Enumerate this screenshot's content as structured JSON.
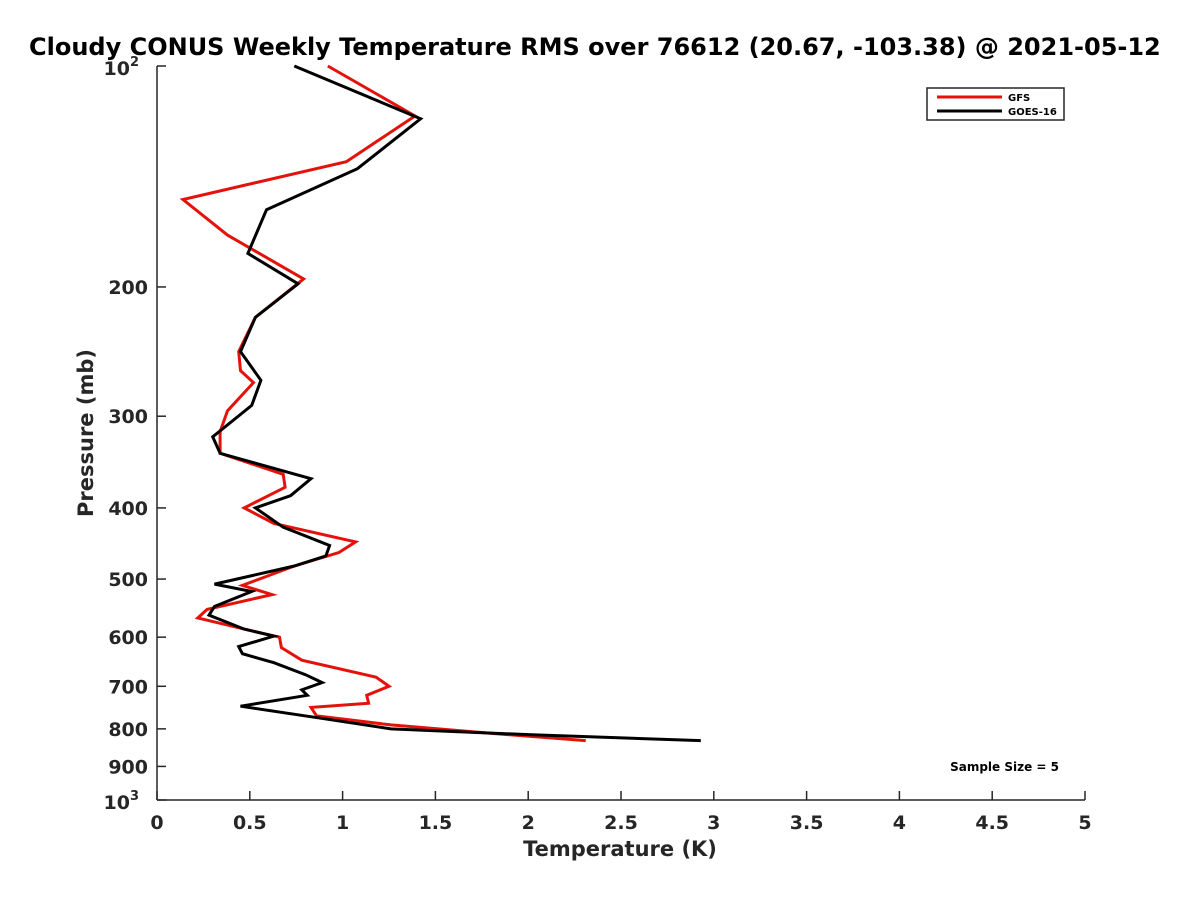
{
  "chart_data": {
    "type": "line",
    "title": "Cloudy CONUS Weekly Temperature RMS over 76612 (20.67, -103.38) @ 2021-05-12",
    "xlabel": "Temperature (K)",
    "ylabel": "Pressure (mb)",
    "xlim": [
      0,
      5
    ],
    "ylim": [
      100,
      1000
    ],
    "y_scale": "log",
    "y_reversed": true,
    "x_ticks": [
      "0",
      "0.5",
      "1",
      "1.5",
      "2",
      "2.5",
      "3",
      "3.5",
      "4",
      "4.5",
      "5"
    ],
    "y_ticks": [
      {
        "value": 100,
        "base": "10",
        "exp": "2"
      },
      {
        "value": 200,
        "label": "200"
      },
      {
        "value": 300,
        "label": "300"
      },
      {
        "value": 400,
        "label": "400"
      },
      {
        "value": 500,
        "label": "500"
      },
      {
        "value": 600,
        "label": "600"
      },
      {
        "value": 700,
        "label": "700"
      },
      {
        "value": 800,
        "label": "800"
      },
      {
        "value": 900,
        "label": "900"
      },
      {
        "value": 1000,
        "base": "10",
        "exp": "3"
      }
    ],
    "grid": false,
    "legend_position": "top-right",
    "annotation": "Sample Size = 5",
    "series": [
      {
        "name": "GFS",
        "color": "#e3120b",
        "points": [
          [
            0.92,
            100
          ],
          [
            1.39,
            117
          ],
          [
            1.02,
            135
          ],
          [
            0.14,
            152
          ],
          [
            0.38,
            170
          ],
          [
            0.79,
            195
          ],
          [
            0.53,
            220
          ],
          [
            0.44,
            245
          ],
          [
            0.45,
            260
          ],
          [
            0.52,
            270
          ],
          [
            0.38,
            295
          ],
          [
            0.34,
            315
          ],
          [
            0.34,
            337
          ],
          [
            0.68,
            360
          ],
          [
            0.69,
            375
          ],
          [
            0.47,
            400
          ],
          [
            0.63,
            420
          ],
          [
            1.07,
            445
          ],
          [
            0.98,
            460
          ],
          [
            0.74,
            480
          ],
          [
            0.46,
            510
          ],
          [
            0.62,
            525
          ],
          [
            0.27,
            550
          ],
          [
            0.22,
            565
          ],
          [
            0.47,
            585
          ],
          [
            0.66,
            600
          ],
          [
            0.67,
            620
          ],
          [
            0.78,
            645
          ],
          [
            1.18,
            680
          ],
          [
            1.25,
            700
          ],
          [
            1.13,
            720
          ],
          [
            1.14,
            738
          ],
          [
            0.83,
            748
          ],
          [
            0.86,
            768
          ],
          [
            1.26,
            790
          ],
          [
            1.82,
            812
          ],
          [
            2.31,
            830
          ]
        ]
      },
      {
        "name": "GOES-16",
        "color": "#000000",
        "points": [
          [
            0.74,
            100
          ],
          [
            1.42,
            118
          ],
          [
            1.08,
            138
          ],
          [
            0.59,
            157
          ],
          [
            0.49,
            180
          ],
          [
            0.76,
            198
          ],
          [
            0.53,
            220
          ],
          [
            0.45,
            245
          ],
          [
            0.56,
            268
          ],
          [
            0.51,
            290
          ],
          [
            0.3,
            320
          ],
          [
            0.34,
            337
          ],
          [
            0.83,
            365
          ],
          [
            0.72,
            385
          ],
          [
            0.53,
            400
          ],
          [
            0.68,
            425
          ],
          [
            0.93,
            450
          ],
          [
            0.91,
            465
          ],
          [
            0.74,
            480
          ],
          [
            0.31,
            508
          ],
          [
            0.51,
            520
          ],
          [
            0.31,
            545
          ],
          [
            0.28,
            560
          ],
          [
            0.47,
            585
          ],
          [
            0.63,
            598
          ],
          [
            0.44,
            618
          ],
          [
            0.46,
            632
          ],
          [
            0.63,
            650
          ],
          [
            0.8,
            675
          ],
          [
            0.89,
            692
          ],
          [
            0.78,
            708
          ],
          [
            0.81,
            720
          ],
          [
            0.45,
            745
          ],
          [
            0.9,
            775
          ],
          [
            1.26,
            800
          ],
          [
            2.02,
            815
          ],
          [
            2.93,
            830
          ]
        ]
      }
    ]
  }
}
